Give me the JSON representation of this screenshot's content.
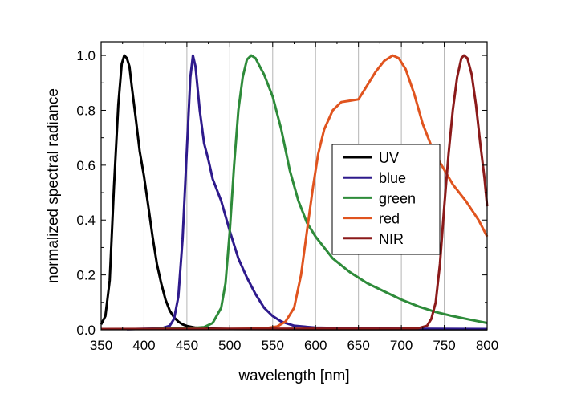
{
  "chart_data": {
    "type": "line",
    "title": "",
    "xlabel": "wavelength [nm]",
    "ylabel": "normalized spectral radiance",
    "xlim": [
      350,
      800
    ],
    "ylim": [
      0,
      1.05
    ],
    "x_ticks": [
      350,
      400,
      450,
      500,
      550,
      600,
      650,
      700,
      750,
      800
    ],
    "x_tick_labels": [
      "350",
      "400",
      "450",
      "500",
      "550",
      "600",
      "650",
      "700",
      "750",
      "800"
    ],
    "y_ticks": [
      0,
      0.2,
      0.4,
      0.6,
      0.8,
      1.0
    ],
    "y_tick_labels": [
      "0.0",
      "0.2",
      "0.4",
      "0.6",
      "0.8",
      "1.0"
    ],
    "grid": "vertical lines at major x ticks",
    "legend_position": "right-center",
    "series": [
      {
        "name": "UV",
        "color": "#000000",
        "points": [
          [
            350,
            0.02
          ],
          [
            355,
            0.05
          ],
          [
            360,
            0.18
          ],
          [
            365,
            0.52
          ],
          [
            370,
            0.82
          ],
          [
            374,
            0.97
          ],
          [
            377,
            1.0
          ],
          [
            380,
            0.99
          ],
          [
            383,
            0.96
          ],
          [
            386,
            0.88
          ],
          [
            390,
            0.78
          ],
          [
            395,
            0.65
          ],
          [
            400,
            0.56
          ],
          [
            405,
            0.45
          ],
          [
            410,
            0.34
          ],
          [
            415,
            0.24
          ],
          [
            420,
            0.17
          ],
          [
            425,
            0.11
          ],
          [
            430,
            0.07
          ],
          [
            435,
            0.045
          ],
          [
            440,
            0.03
          ],
          [
            445,
            0.02
          ],
          [
            450,
            0.014
          ],
          [
            460,
            0.008
          ],
          [
            470,
            0.005
          ],
          [
            500,
            0.003
          ],
          [
            600,
            0.002
          ],
          [
            800,
            0.002
          ]
        ]
      },
      {
        "name": "blue",
        "color": "#2e1a8c",
        "points": [
          [
            380,
            0.002
          ],
          [
            420,
            0.005
          ],
          [
            430,
            0.015
          ],
          [
            435,
            0.04
          ],
          [
            440,
            0.12
          ],
          [
            445,
            0.33
          ],
          [
            450,
            0.66
          ],
          [
            454,
            0.92
          ],
          [
            457,
            1.0
          ],
          [
            460,
            0.96
          ],
          [
            465,
            0.8
          ],
          [
            470,
            0.68
          ],
          [
            475,
            0.62
          ],
          [
            480,
            0.55
          ],
          [
            490,
            0.47
          ],
          [
            500,
            0.36
          ],
          [
            510,
            0.26
          ],
          [
            520,
            0.19
          ],
          [
            530,
            0.13
          ],
          [
            540,
            0.08
          ],
          [
            550,
            0.05
          ],
          [
            560,
            0.03
          ],
          [
            575,
            0.015
          ],
          [
            600,
            0.008
          ],
          [
            650,
            0.005
          ],
          [
            700,
            0.004
          ],
          [
            800,
            0.003
          ]
        ]
      },
      {
        "name": "green",
        "color": "#2e8b3a",
        "points": [
          [
            400,
            0.003
          ],
          [
            450,
            0.005
          ],
          [
            470,
            0.01
          ],
          [
            480,
            0.025
          ],
          [
            490,
            0.08
          ],
          [
            495,
            0.17
          ],
          [
            500,
            0.36
          ],
          [
            505,
            0.6
          ],
          [
            510,
            0.8
          ],
          [
            515,
            0.92
          ],
          [
            520,
            0.985
          ],
          [
            525,
            1.0
          ],
          [
            530,
            0.99
          ],
          [
            535,
            0.96
          ],
          [
            540,
            0.93
          ],
          [
            550,
            0.85
          ],
          [
            560,
            0.73
          ],
          [
            570,
            0.58
          ],
          [
            580,
            0.47
          ],
          [
            590,
            0.39
          ],
          [
            600,
            0.34
          ],
          [
            620,
            0.26
          ],
          [
            640,
            0.21
          ],
          [
            660,
            0.17
          ],
          [
            680,
            0.14
          ],
          [
            700,
            0.11
          ],
          [
            720,
            0.085
          ],
          [
            740,
            0.065
          ],
          [
            760,
            0.05
          ],
          [
            780,
            0.037
          ],
          [
            800,
            0.025
          ]
        ]
      },
      {
        "name": "red",
        "color": "#e0541f",
        "points": [
          [
            500,
            0.003
          ],
          [
            540,
            0.005
          ],
          [
            555,
            0.012
          ],
          [
            565,
            0.03
          ],
          [
            575,
            0.08
          ],
          [
            583,
            0.2
          ],
          [
            590,
            0.36
          ],
          [
            597,
            0.52
          ],
          [
            603,
            0.64
          ],
          [
            610,
            0.73
          ],
          [
            620,
            0.8
          ],
          [
            630,
            0.83
          ],
          [
            640,
            0.835
          ],
          [
            650,
            0.84
          ],
          [
            660,
            0.89
          ],
          [
            670,
            0.94
          ],
          [
            680,
            0.98
          ],
          [
            690,
            1.0
          ],
          [
            697,
            0.99
          ],
          [
            705,
            0.95
          ],
          [
            715,
            0.86
          ],
          [
            725,
            0.75
          ],
          [
            735,
            0.67
          ],
          [
            745,
            0.61
          ],
          [
            760,
            0.53
          ],
          [
            775,
            0.47
          ],
          [
            790,
            0.4
          ],
          [
            800,
            0.34
          ]
        ]
      },
      {
        "name": "NIR",
        "color": "#8b1a1a",
        "points": [
          [
            350,
            0.003
          ],
          [
            600,
            0.004
          ],
          [
            700,
            0.004
          ],
          [
            720,
            0.006
          ],
          [
            730,
            0.015
          ],
          [
            735,
            0.04
          ],
          [
            740,
            0.1
          ],
          [
            745,
            0.24
          ],
          [
            750,
            0.45
          ],
          [
            755,
            0.64
          ],
          [
            760,
            0.8
          ],
          [
            765,
            0.92
          ],
          [
            770,
            0.99
          ],
          [
            773,
            1.0
          ],
          [
            777,
            0.99
          ],
          [
            782,
            0.93
          ],
          [
            787,
            0.82
          ],
          [
            792,
            0.68
          ],
          [
            797,
            0.55
          ],
          [
            800,
            0.45
          ]
        ]
      }
    ]
  }
}
